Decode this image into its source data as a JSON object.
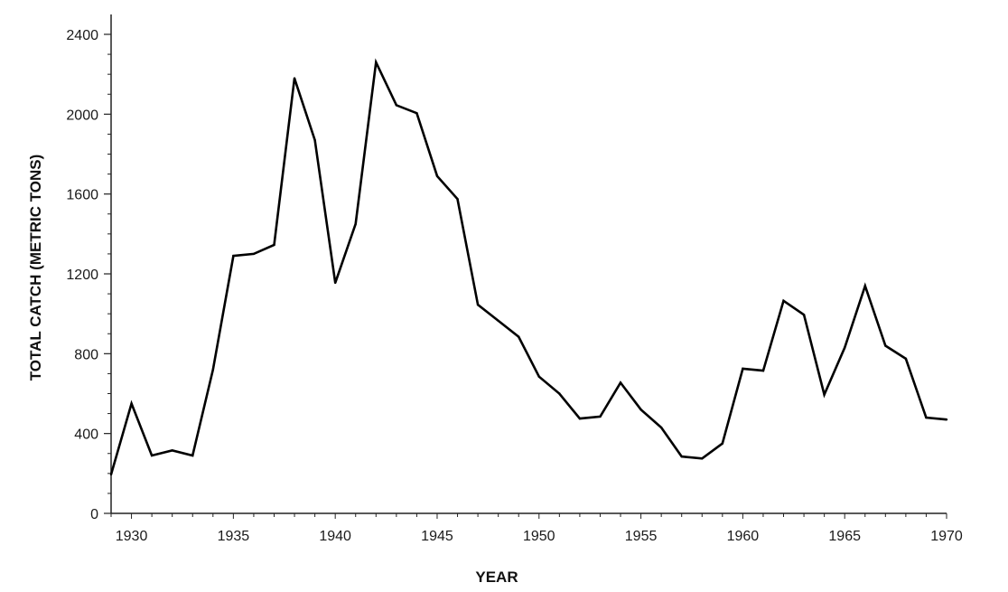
{
  "chart_data": {
    "type": "line",
    "title": "",
    "xlabel": "YEAR",
    "ylabel": "TOTAL CATCH (METRIC TONS)",
    "xlim": [
      1929,
      1970
    ],
    "ylim": [
      0,
      2500
    ],
    "x_ticks": [
      1930,
      1935,
      1940,
      1945,
      1950,
      1955,
      1960,
      1965,
      1970
    ],
    "y_ticks": [
      0,
      400,
      800,
      1200,
      1600,
      2000,
      2400
    ],
    "grid": false,
    "legend": "none",
    "line_color": "#000000",
    "series": [
      {
        "x": [
          1929,
          1930,
          1931,
          1932,
          1933,
          1934,
          1935,
          1936,
          1937,
          1938,
          1939,
          1940,
          1941,
          1942,
          1943,
          1944,
          1945,
          1946,
          1947,
          1948,
          1949,
          1950,
          1951,
          1952,
          1953,
          1954,
          1955,
          1956,
          1957,
          1958,
          1959,
          1960,
          1961,
          1962,
          1963,
          1964,
          1965,
          1966,
          1967,
          1968,
          1969,
          1970
        ],
        "y": [
          195,
          550,
          290,
          315,
          290,
          720,
          1290,
          1300,
          1345,
          2180,
          1870,
          1155,
          1450,
          2260,
          2045,
          2005,
          1690,
          1575,
          1045,
          965,
          885,
          685,
          600,
          475,
          485,
          655,
          520,
          430,
          285,
          275,
          350,
          725,
          715,
          1065,
          995,
          595,
          830,
          1140,
          840,
          775,
          480,
          470
        ]
      }
    ]
  }
}
